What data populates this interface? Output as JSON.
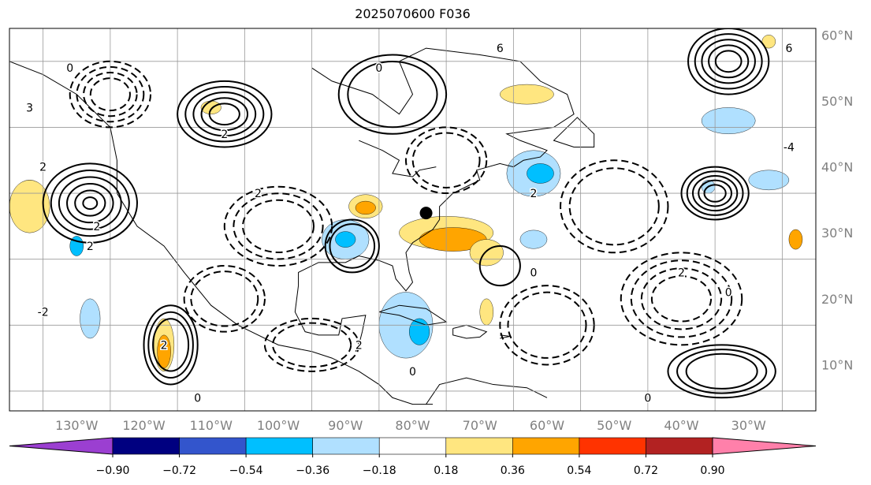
{
  "title": "2025070600 F036",
  "map": {
    "lon_range": [
      -140,
      -20
    ],
    "lat_range": [
      7,
      65
    ],
    "lon_gridlines": [
      -135,
      -125,
      -115,
      -105,
      -95,
      -85,
      -75,
      -65,
      -55,
      -45,
      -35,
      -25
    ],
    "lat_gridlines": [
      10,
      20,
      30,
      40,
      50,
      60
    ],
    "lon_labels": [
      {
        "lon": -130,
        "text": "130°W"
      },
      {
        "lon": -120,
        "text": "120°W"
      },
      {
        "lon": -110,
        "text": "110°W"
      },
      {
        "lon": -100,
        "text": "100°W"
      },
      {
        "lon": -90,
        "text": "90°W"
      },
      {
        "lon": -80,
        "text": "80°W"
      },
      {
        "lon": -70,
        "text": "70°W"
      },
      {
        "lon": -60,
        "text": "60°W"
      },
      {
        "lon": -50,
        "text": "50°W"
      },
      {
        "lon": -40,
        "text": "40°W"
      },
      {
        "lon": -30,
        "text": "30°W"
      }
    ],
    "lat_labels": [
      {
        "lat": 64,
        "text": "60°N"
      },
      {
        "lat": 54,
        "text": "50°N"
      },
      {
        "lat": 44,
        "text": "40°N"
      },
      {
        "lat": 34,
        "text": "30°N"
      },
      {
        "lat": 24,
        "text": "20°N"
      },
      {
        "lat": 14,
        "text": "10°N"
      }
    ],
    "marker": {
      "lon": -78,
      "lat": 37,
      "color": "#000000"
    }
  },
  "colorbar": {
    "colors": [
      "#9b3fd1",
      "#000080",
      "#3355cc",
      "#00bfff",
      "#b0e0ff",
      "#ffffff",
      "#ffe680",
      "#ffa500",
      "#ff3300",
      "#b22222",
      "#ff80aa"
    ],
    "labels": [
      "−0.90",
      "−0.72",
      "−0.54",
      "−0.36",
      "−0.18",
      "0.18",
      "0.36",
      "0.54",
      "0.72",
      "0.90"
    ]
  },
  "shaded_blobs": [
    {
      "lon": -90,
      "lat": 33,
      "rx": 3.5,
      "ry": 3,
      "color": "#b0e0ff"
    },
    {
      "lon": -90,
      "lat": 33,
      "rx": 1.5,
      "ry": 1.2,
      "color": "#00bfff"
    },
    {
      "lon": -81,
      "lat": 20,
      "rx": 4,
      "ry": 5,
      "color": "#b0e0ff"
    },
    {
      "lon": -79,
      "lat": 19,
      "rx": 1.5,
      "ry": 2,
      "color": "#00bfff"
    },
    {
      "lon": -62,
      "lat": 43,
      "rx": 4,
      "ry": 3.5,
      "color": "#b0e0ff"
    },
    {
      "lon": -61,
      "lat": 43,
      "rx": 2,
      "ry": 1.5,
      "color": "#00bfff"
    },
    {
      "lon": -62,
      "lat": 33,
      "rx": 2,
      "ry": 1.4,
      "color": "#b0e0ff"
    },
    {
      "lon": -130,
      "lat": 32,
      "rx": 1,
      "ry": 1.5,
      "color": "#00bfff"
    },
    {
      "lon": -128,
      "lat": 21,
      "rx": 1.5,
      "ry": 3,
      "color": "#b0e0ff"
    },
    {
      "lon": -33,
      "lat": 51,
      "rx": 4,
      "ry": 2,
      "color": "#b0e0ff"
    },
    {
      "lon": -27,
      "lat": 42,
      "rx": 3,
      "ry": 1.5,
      "color": "#b0e0ff"
    },
    {
      "lon": -36,
      "lat": 41,
      "rx": 1,
      "ry": 1,
      "color": "#b0e0ff"
    },
    {
      "lon": -87,
      "lat": 38,
      "rx": 2.5,
      "ry": 1.8,
      "color": "#ffe680"
    },
    {
      "lon": -87,
      "lat": 37.8,
      "rx": 1.5,
      "ry": 1,
      "color": "#ffa500"
    },
    {
      "lon": -75,
      "lat": 34,
      "rx": 7,
      "ry": 2.5,
      "color": "#ffe680"
    },
    {
      "lon": -74,
      "lat": 33,
      "rx": 5,
      "ry": 1.8,
      "color": "#ffa500"
    },
    {
      "lon": -69,
      "lat": 31,
      "rx": 2.5,
      "ry": 2,
      "color": "#ffe680"
    },
    {
      "lon": -63,
      "lat": 55,
      "rx": 4,
      "ry": 1.5,
      "color": "#ffe680"
    },
    {
      "lon": -137,
      "lat": 39,
      "rx": 2.5,
      "ry": 3,
      "color": "#ffa500"
    },
    {
      "lon": -137,
      "lat": 38,
      "rx": 3,
      "ry": 4,
      "color": "#ffe680"
    },
    {
      "lon": -117,
      "lat": 17,
      "rx": 1.5,
      "ry": 4,
      "color": "#ffe680"
    },
    {
      "lon": -117,
      "lat": 16,
      "rx": 1,
      "ry": 2.5,
      "color": "#ffa500"
    },
    {
      "lon": -69,
      "lat": 22,
      "rx": 1,
      "ry": 2,
      "color": "#ffe680"
    },
    {
      "lon": -23,
      "lat": 33,
      "rx": 1,
      "ry": 1.5,
      "color": "#ffa500"
    },
    {
      "lon": -27,
      "lat": 63,
      "rx": 1,
      "ry": 1,
      "color": "#ffe680"
    },
    {
      "lon": -110,
      "lat": 53,
      "rx": 1.5,
      "ry": 1,
      "color": "#ffe680"
    }
  ],
  "contours": [
    {
      "lon": -128,
      "lat": 38.5,
      "rx": 7,
      "ry": 6,
      "rings": 6,
      "dashed": false
    },
    {
      "lon": -108,
      "lat": 52,
      "rx": 7,
      "ry": 5,
      "rings": 5,
      "dashed": false
    },
    {
      "lon": -116,
      "lat": 17,
      "rx": 4,
      "ry": 6,
      "rings": 3,
      "dashed": false
    },
    {
      "lon": -33,
      "lat": 60,
      "rx": 6,
      "ry": 5,
      "rings": 5,
      "dashed": false
    },
    {
      "lon": -35,
      "lat": 40,
      "rx": 5,
      "ry": 4,
      "rings": 5,
      "dashed": false
    },
    {
      "lon": -34,
      "lat": 13,
      "rx": 8,
      "ry": 4,
      "rings": 3,
      "dashed": false
    },
    {
      "lon": -89,
      "lat": 32,
      "rx": 4,
      "ry": 4,
      "rings": 2,
      "dashed": false
    },
    {
      "lon": -67,
      "lat": 29,
      "rx": 3,
      "ry": 3,
      "rings": 1,
      "dashed": false
    },
    {
      "lon": -83,
      "lat": 55,
      "rx": 8,
      "ry": 6,
      "rings": 2,
      "dashed": false
    },
    {
      "lon": -100,
      "lat": 35,
      "rx": 8,
      "ry": 6,
      "rings": 3,
      "dashed": true
    },
    {
      "lon": -75,
      "lat": 45,
      "rx": 6,
      "ry": 5,
      "rings": 2,
      "dashed": true
    },
    {
      "lon": -50,
      "lat": 38,
      "rx": 8,
      "ry": 7,
      "rings": 2,
      "dashed": true
    },
    {
      "lon": -40,
      "lat": 24,
      "rx": 9,
      "ry": 7,
      "rings": 4,
      "dashed": true
    },
    {
      "lon": -108,
      "lat": 24,
      "rx": 6,
      "ry": 5,
      "rings": 2,
      "dashed": true
    },
    {
      "lon": -125,
      "lat": 55,
      "rx": 6,
      "ry": 5,
      "rings": 4,
      "dashed": true
    },
    {
      "lon": -60,
      "lat": 20,
      "rx": 7,
      "ry": 6,
      "rings": 2,
      "dashed": true
    },
    {
      "lon": -95,
      "lat": 17,
      "rx": 7,
      "ry": 4,
      "rings": 2,
      "dashed": true
    }
  ],
  "contour_labels": [
    {
      "lon": -127,
      "lat": 35,
      "text": "2"
    },
    {
      "lon": -108,
      "lat": 49,
      "text": "2"
    },
    {
      "lon": -85,
      "lat": 59,
      "text": "0"
    },
    {
      "lon": -67,
      "lat": 62,
      "text": "6"
    },
    {
      "lon": -24,
      "lat": 62,
      "text": "6"
    },
    {
      "lon": -24,
      "lat": 47,
      "text": "-4"
    },
    {
      "lon": -62,
      "lat": 40,
      "text": "2"
    },
    {
      "lon": -40,
      "lat": 28,
      "text": "2"
    },
    {
      "lon": -135,
      "lat": 44,
      "text": "2"
    },
    {
      "lon": -135,
      "lat": 22,
      "text": "-2"
    },
    {
      "lon": -128,
      "lat": 32,
      "text": "2"
    },
    {
      "lon": -117,
      "lat": 17,
      "text": "2"
    },
    {
      "lon": -137,
      "lat": 53,
      "text": "3"
    },
    {
      "lon": -131,
      "lat": 59,
      "text": "0"
    },
    {
      "lon": -103,
      "lat": 40,
      "text": "2"
    },
    {
      "lon": -88,
      "lat": 17,
      "text": "2"
    },
    {
      "lon": -62,
      "lat": 28,
      "text": "0"
    },
    {
      "lon": -80,
      "lat": 13,
      "text": "0"
    },
    {
      "lon": -33,
      "lat": 25,
      "text": "0"
    },
    {
      "lon": -45,
      "lat": 9,
      "text": "0"
    },
    {
      "lon": -112,
      "lat": 9,
      "text": "0"
    }
  ]
}
